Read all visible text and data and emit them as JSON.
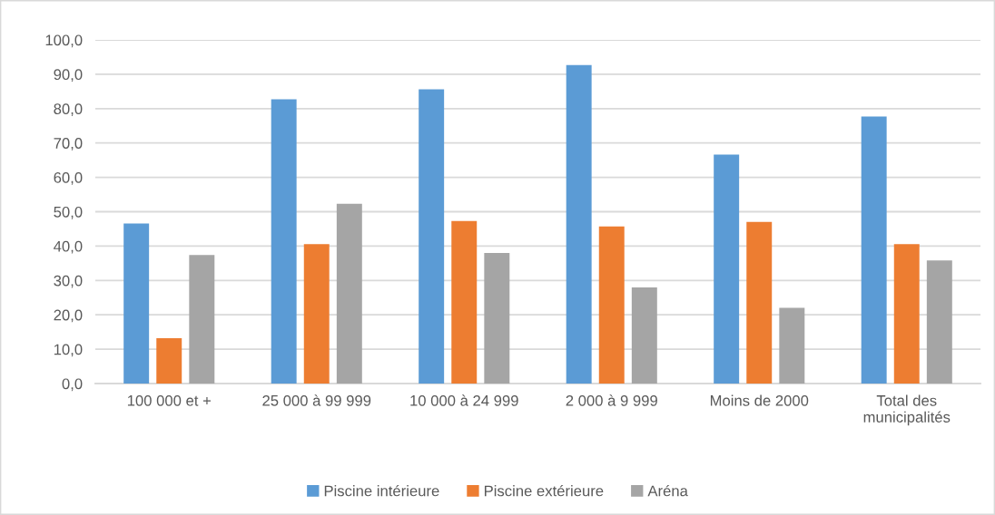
{
  "chart_data": {
    "type": "bar",
    "categories": [
      "100 000 et +",
      "25 000 à 99 999",
      "10 000 à 24 999",
      "2 000 à 9 999",
      "Moins de 2000",
      "Total des\nmunicipalités"
    ],
    "series": [
      {
        "name": "Piscine intérieure",
        "color": "#5b9bd5",
        "values": [
          46.6,
          82.7,
          85.6,
          92.7,
          66.6,
          77.7
        ]
      },
      {
        "name": "Piscine extérieure",
        "color": "#ed7d31",
        "values": [
          13.2,
          40.6,
          47.3,
          45.7,
          47.0,
          40.6
        ]
      },
      {
        "name": "Aréna",
        "color": "#a5a5a5",
        "values": [
          37.4,
          52.3,
          38.0,
          28.0,
          22.0,
          35.8
        ]
      }
    ],
    "ylim": [
      0,
      100
    ],
    "yticks": [
      {
        "value": 0,
        "label": "0,0"
      },
      {
        "value": 10,
        "label": "10,0"
      },
      {
        "value": 20,
        "label": "20,0"
      },
      {
        "value": 30,
        "label": "30,0"
      },
      {
        "value": 40,
        "label": "40,0"
      },
      {
        "value": 50,
        "label": "50,0"
      },
      {
        "value": 60,
        "label": "60,0"
      },
      {
        "value": 70,
        "label": "70,0"
      },
      {
        "value": 80,
        "label": "80,0"
      },
      {
        "value": 90,
        "label": "90,0"
      },
      {
        "value": 100,
        "label": "100,0"
      }
    ],
    "grid": "y",
    "legend": "bottom"
  }
}
